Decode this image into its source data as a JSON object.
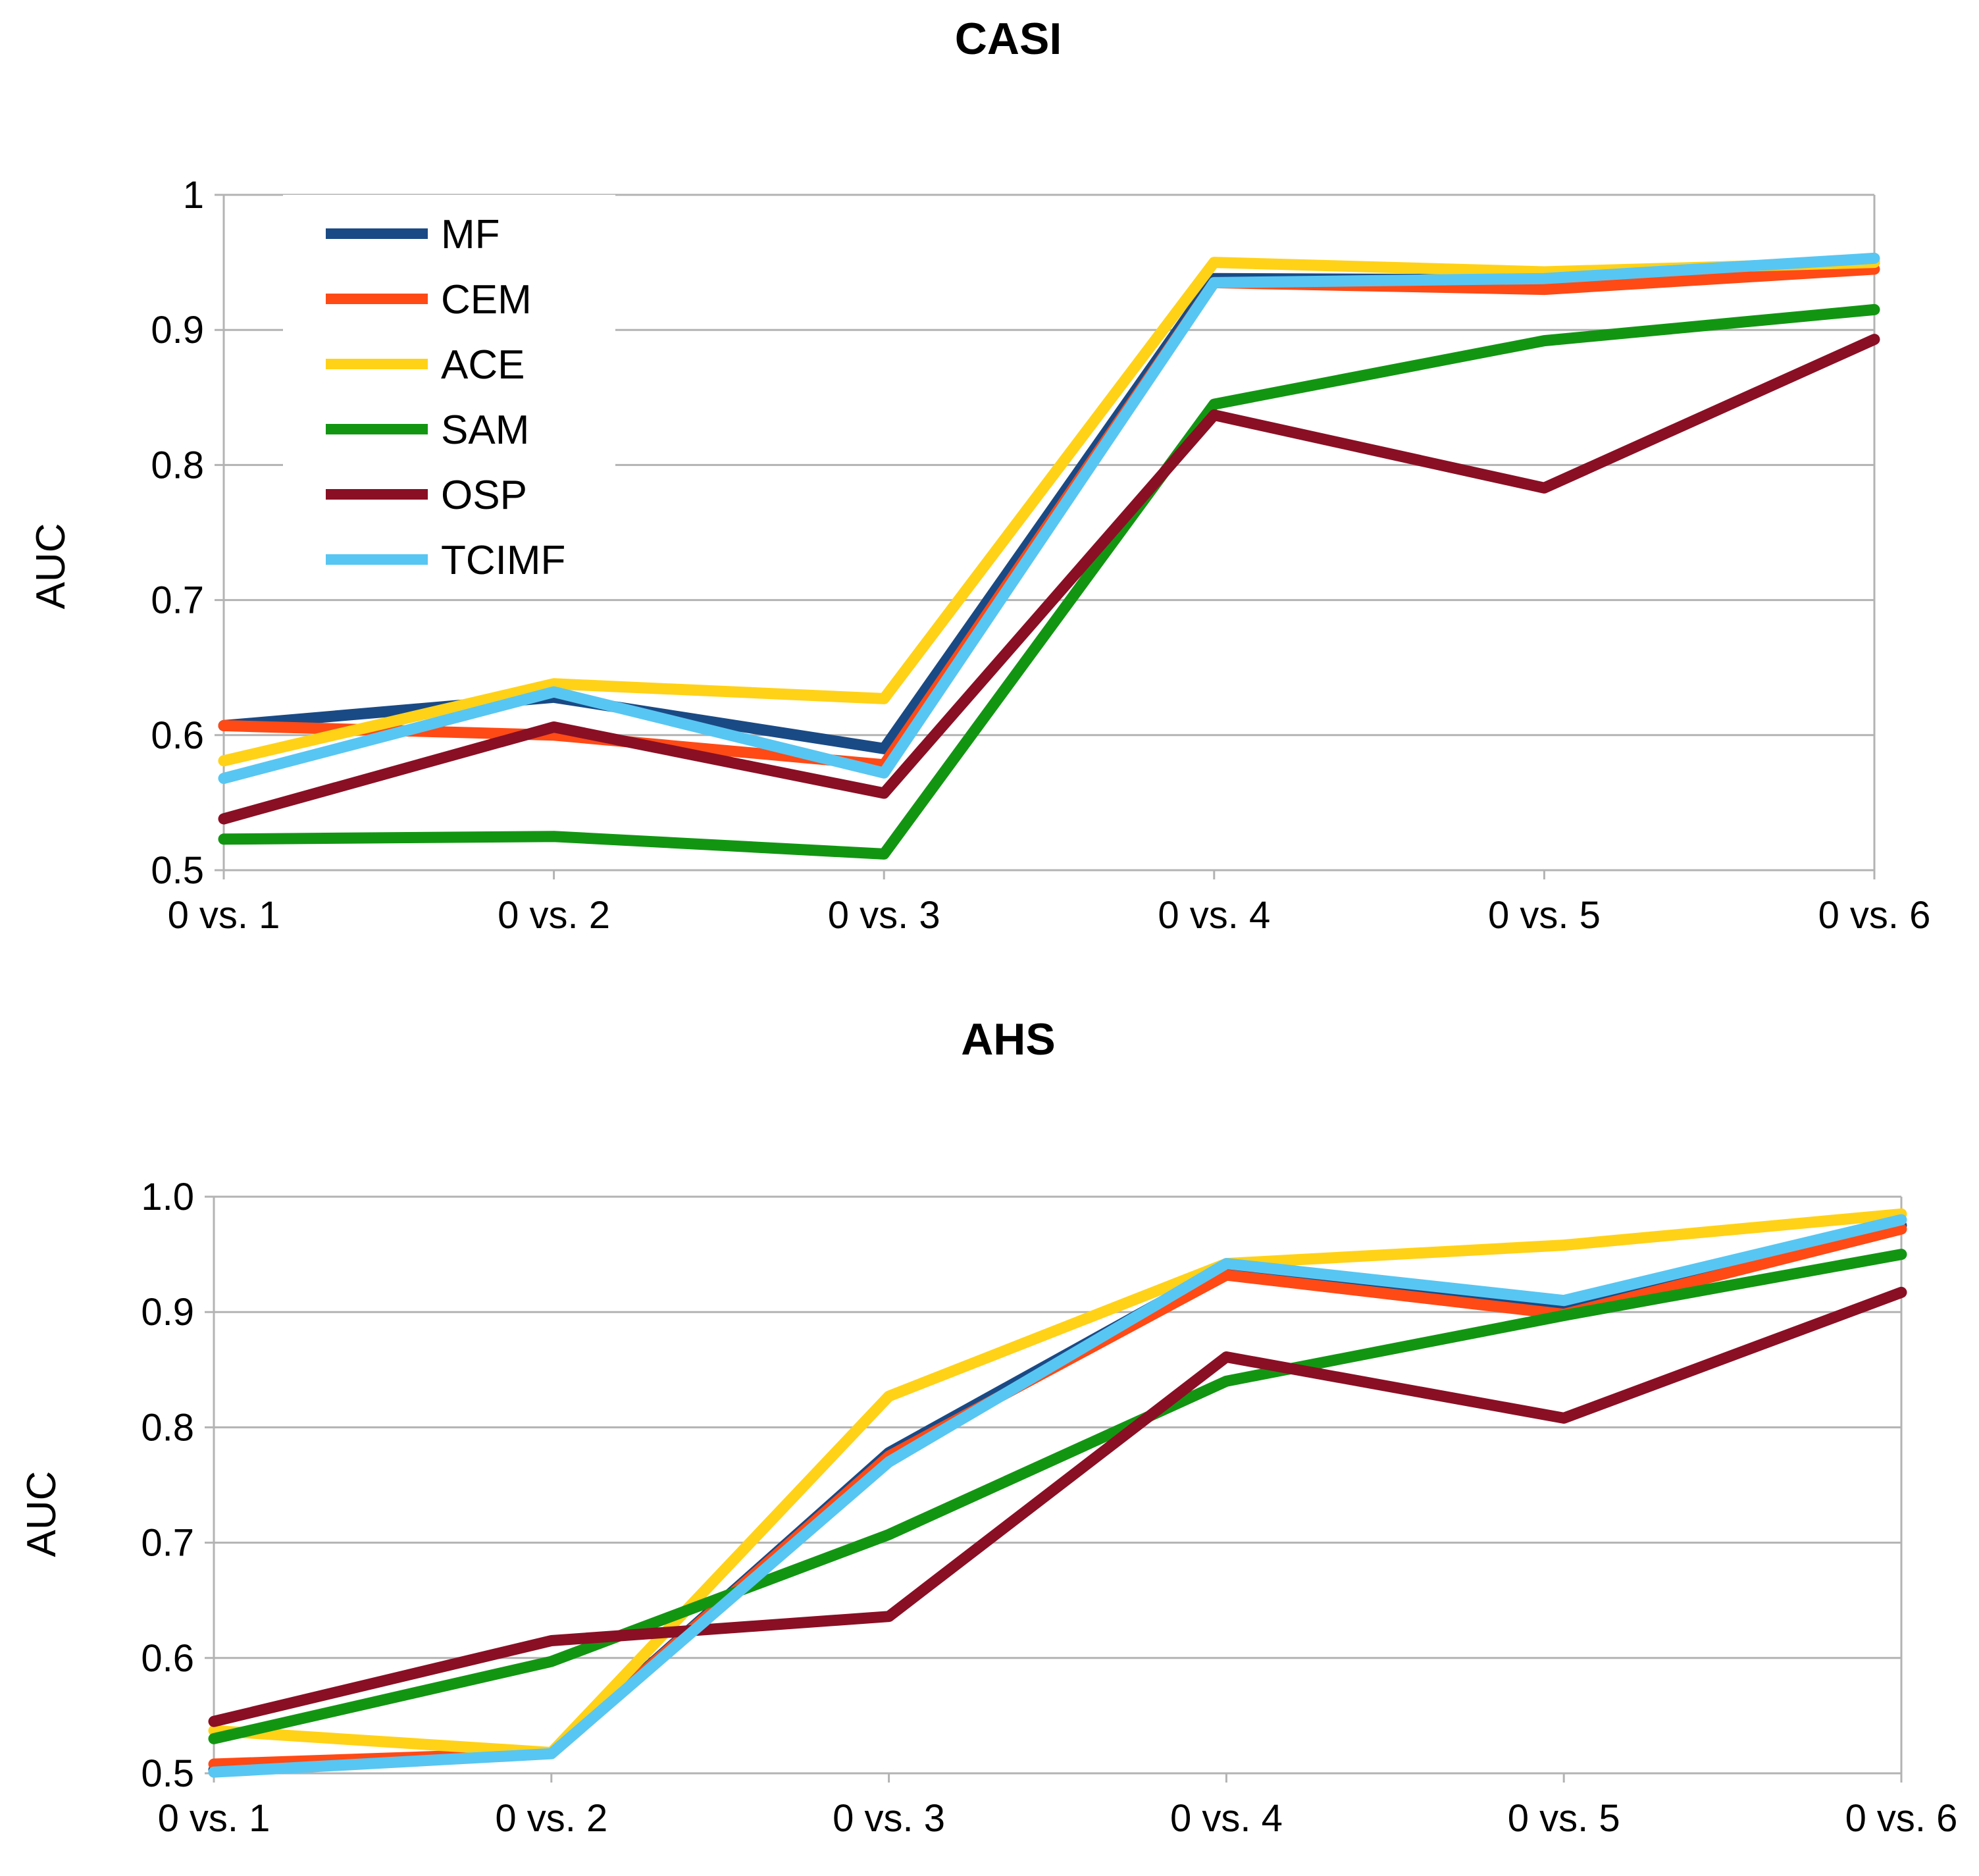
{
  "colors": {
    "MF": "#1a4a85",
    "CEM": "#ff4a16",
    "ACE": "#ffd218",
    "SAM": "#129612",
    "OSP": "#8a0f24",
    "TCIMF": "#58c6f2",
    "grid": "#b3b3b3",
    "axis": "#b3b3b3"
  },
  "chart_data": [
    {
      "type": "line",
      "title": "CASI",
      "xlabel": "",
      "ylabel": "AUC",
      "categories": [
        "0 vs. 1",
        "0 vs. 2",
        "0 vs. 3",
        "0 vs. 4",
        "0 vs. 5",
        "0 vs. 6"
      ],
      "ylim": [
        0.5,
        1.0
      ],
      "yticks": [
        "0.5",
        "0.6",
        "0.7",
        "0.8",
        "0.9",
        "1"
      ],
      "grid": true,
      "legend_position": "top-left",
      "series": [
        {
          "name": "MF",
          "values": [
            0.607,
            0.628,
            0.59,
            0.938,
            0.937,
            0.95
          ]
        },
        {
          "name": "CEM",
          "values": [
            0.607,
            0.6,
            0.578,
            0.935,
            0.93,
            0.945
          ]
        },
        {
          "name": "ACE",
          "values": [
            0.581,
            0.638,
            0.627,
            0.95,
            0.943,
            0.95
          ]
        },
        {
          "name": "SAM",
          "values": [
            0.523,
            0.525,
            0.512,
            0.845,
            0.892,
            0.915
          ]
        },
        {
          "name": "OSP",
          "values": [
            0.538,
            0.606,
            0.557,
            0.837,
            0.783,
            0.893
          ]
        },
        {
          "name": "TCIMF",
          "values": [
            0.568,
            0.632,
            0.572,
            0.935,
            0.938,
            0.953
          ]
        }
      ]
    },
    {
      "type": "line",
      "title": "AHS",
      "xlabel": "",
      "ylabel": "AUC",
      "categories": [
        "0 vs. 1",
        "0 vs. 2",
        "0 vs. 3",
        "0 vs. 4",
        "0 vs. 5",
        "0 vs. 6"
      ],
      "ylim": [
        0.5,
        1.0
      ],
      "yticks": [
        "0.5",
        "0.6",
        "0.7",
        "0.8",
        "0.9",
        "1.0"
      ],
      "grid": true,
      "legend_position": "none",
      "series": [
        {
          "name": "MF",
          "values": [
            0.503,
            0.518,
            0.778,
            0.94,
            0.905,
            0.975
          ]
        },
        {
          "name": "CEM",
          "values": [
            0.508,
            0.518,
            0.775,
            0.932,
            0.898,
            0.972
          ]
        },
        {
          "name": "ACE",
          "values": [
            0.537,
            0.518,
            0.827,
            0.942,
            0.958,
            0.985
          ]
        },
        {
          "name": "SAM",
          "values": [
            0.53,
            0.597,
            0.707,
            0.84,
            0.897,
            0.95
          ]
        },
        {
          "name": "OSP",
          "values": [
            0.545,
            0.615,
            0.636,
            0.861,
            0.808,
            0.917
          ]
        },
        {
          "name": "TCIMF",
          "values": [
            0.501,
            0.517,
            0.77,
            0.942,
            0.91,
            0.98
          ]
        }
      ]
    }
  ]
}
